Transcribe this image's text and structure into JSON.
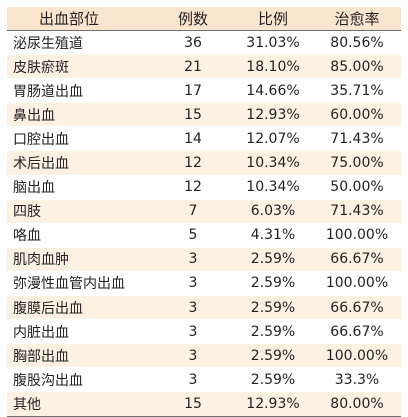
{
  "table": {
    "headers": [
      "出血部位",
      "例数",
      "比例",
      "治愈率"
    ],
    "rows": [
      {
        "site": "泌尿生殖道",
        "count": "36",
        "ratio": "31.03%",
        "cure": "80.56%"
      },
      {
        "site": "皮肤瘀斑",
        "count": "21",
        "ratio": "18.10%",
        "cure": "85.00%"
      },
      {
        "site": "胃肠道出血",
        "count": "17",
        "ratio": "14.66%",
        "cure": "35.71%"
      },
      {
        "site": "鼻出血",
        "count": "15",
        "ratio": "12.93%",
        "cure": "60.00%"
      },
      {
        "site": "口腔出血",
        "count": "14",
        "ratio": "12.07%",
        "cure": "71.43%"
      },
      {
        "site": "术后出血",
        "count": "12",
        "ratio": "10.34%",
        "cure": "75.00%"
      },
      {
        "site": "脑出血",
        "count": "12",
        "ratio": "10.34%",
        "cure": "50.00%"
      },
      {
        "site": "四肢",
        "count": "7",
        "ratio": "6.03%",
        "cure": "71.43%"
      },
      {
        "site": "咯血",
        "count": "5",
        "ratio": "4.31%",
        "cure": "100.00%"
      },
      {
        "site": "肌肉血肿",
        "count": "3",
        "ratio": "2.59%",
        "cure": "66.67%"
      },
      {
        "site": "弥漫性血管内出血",
        "count": "3",
        "ratio": "2.59%",
        "cure": "100.00%"
      },
      {
        "site": "腹膜后出血",
        "count": "3",
        "ratio": "2.59%",
        "cure": "66.67%"
      },
      {
        "site": "内脏出血",
        "count": "3",
        "ratio": "2.59%",
        "cure": "66.67%"
      },
      {
        "site": "胸部出血",
        "count": "3",
        "ratio": "2.59%",
        "cure": "100.00%"
      },
      {
        "site": "腹股沟出血",
        "count": "3",
        "ratio": "2.59%",
        "cure": "33.3%"
      },
      {
        "site": "其他",
        "count": "15",
        "ratio": "12.93%",
        "cure": "80.00%"
      }
    ]
  }
}
